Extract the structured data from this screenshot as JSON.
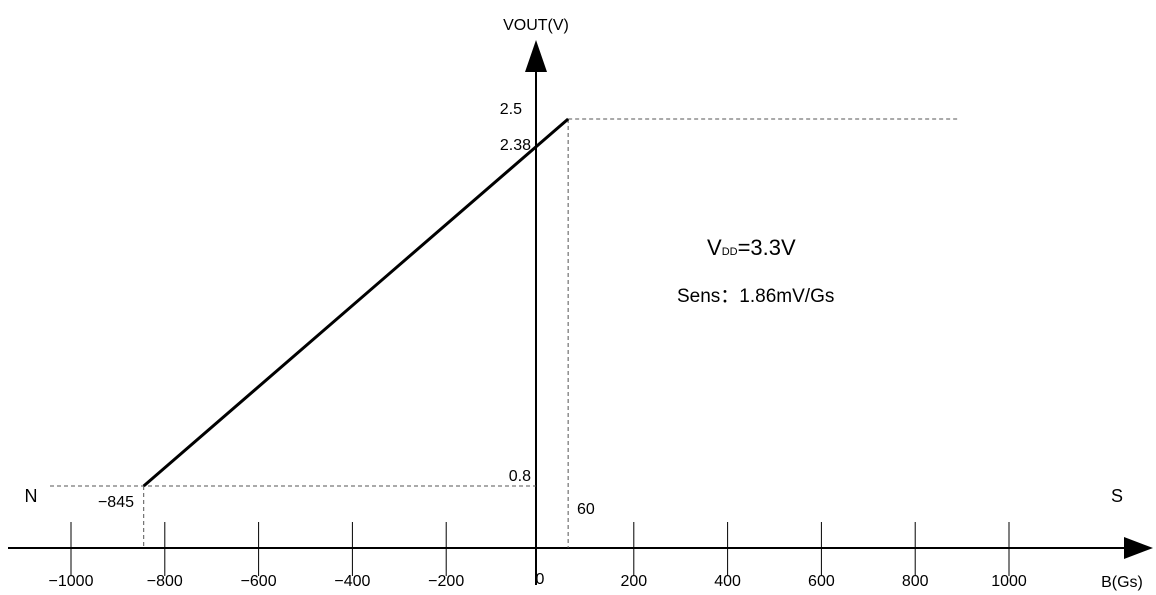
{
  "chart_data": {
    "type": "line",
    "xlabel": "B(Gs)",
    "ylabel": "VOUT(V)",
    "x_ticks": [
      -1000,
      -800,
      -600,
      -400,
      -200,
      200,
      400,
      600,
      800,
      1000
    ],
    "x_tick_labels": [
      "−1000",
      "−800",
      "−600",
      "−400",
      "−200",
      "200",
      "400",
      "600",
      "800",
      "1000"
    ],
    "origin_label": "0",
    "series": [
      {
        "x": [
          -845,
          60
        ],
        "y": [
          0.8,
          2.5
        ],
        "color": "#000000"
      }
    ],
    "reference_lines": {
      "x_low": -845,
      "x_high": 60,
      "y_low": 0.8,
      "y_high": 2.5,
      "y_intercept": 2.38
    },
    "point_labels": {
      "x_low": "−845",
      "x_high": "60",
      "y_low": "0.8",
      "y_high": "2.5",
      "y_intercept": "2.38"
    },
    "pole_labels": {
      "north": "N",
      "south": "S",
      "north_color": "#c00000",
      "south_color": "#0000ff"
    },
    "annotations": {
      "vdd_prefix": "V",
      "vdd_subscript": "DD",
      "vdd_value": "=3.3V",
      "sensitivity": "Sens：1.86mV/Gs"
    },
    "grid": false
  }
}
